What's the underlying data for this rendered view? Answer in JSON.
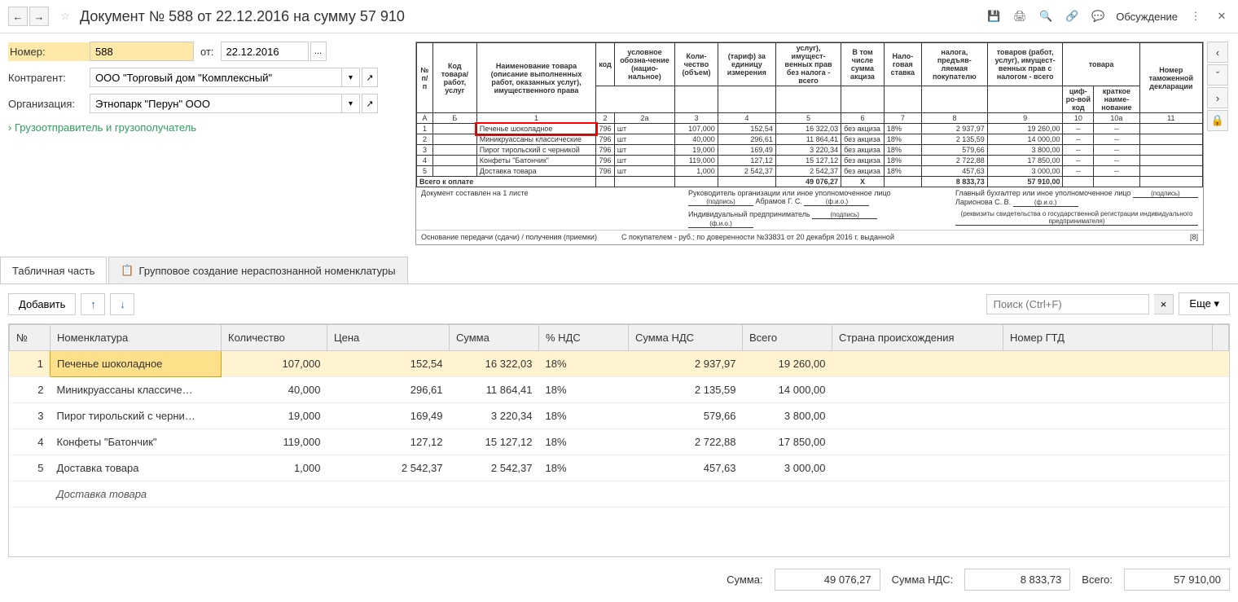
{
  "header": {
    "title": "Документ № 588 от 22.12.2016 на сумму 57 910",
    "discuss": "Обсуждение"
  },
  "form": {
    "number_label": "Номер:",
    "number": "588",
    "date_label": "от:",
    "date": "22.12.2016",
    "counterparty_label": "Контрагент:",
    "counterparty": "ООО \"Торговый дом \"Комплексный\"",
    "org_label": "Организация:",
    "org": "Этнопарк \"Перун\" ООО",
    "link": "Грузоотправитель и грузополучатель"
  },
  "preview": {
    "headers": {
      "n": "№ п/п",
      "code": "Код товара/ работ, услуг",
      "name": "Наименование товара (описание выполненных работ, оказанных услуг), имущественного права",
      "unit_code": "код",
      "unit_name": "условное обозна-чение (нацио-нальное)",
      "qty": "Коли-чество (объем)",
      "price": "(тариф) за единицу измерения",
      "cost_novat": "услуг), имущест-венных прав без налога - всего",
      "excise": "В том числе сумма акциза",
      "vat_rate": "Нало-говая ставка",
      "vat_sum": "налога, предъяв-ляемая покупателю",
      "total": "товаров (работ, услуг), имущест-венных прав с налогом - всего",
      "country_code": "циф-ро-вой код",
      "country_name": "краткое наиме-нование",
      "decl": "Номер таможенной декларации",
      "goods": "товара"
    },
    "colnums": {
      "a": "А",
      "b": "Б",
      "c1": "1",
      "c2": "2",
      "c2a": "2а",
      "c3": "3",
      "c4": "4",
      "c5": "5",
      "c6": "6",
      "c7": "7",
      "c8": "8",
      "c9": "9",
      "c10": "10",
      "c10a": "10а",
      "c11": "11"
    },
    "rows": [
      {
        "n": "1",
        "name": "Печенье шоколадное",
        "code": "796",
        "unit": "шт",
        "qty": "107,000",
        "price": "152,54",
        "sum": "16 322,03",
        "exc": "без акциза",
        "rate": "18%",
        "vat": "2 937,97",
        "total": "19 260,00"
      },
      {
        "n": "2",
        "name": "Миникруассаны классические",
        "code": "796",
        "unit": "шт",
        "qty": "40,000",
        "price": "296,61",
        "sum": "11 864,41",
        "exc": "без акциза",
        "rate": "18%",
        "vat": "2 135,59",
        "total": "14 000,00"
      },
      {
        "n": "3",
        "name": "Пирог тирольский с черникой",
        "code": "796",
        "unit": "шт",
        "qty": "19,000",
        "price": "169,49",
        "sum": "3 220,34",
        "exc": "без акциза",
        "rate": "18%",
        "vat": "579,66",
        "total": "3 800,00"
      },
      {
        "n": "4",
        "name": "Конфеты \"Батончик\"",
        "code": "796",
        "unit": "шт",
        "qty": "119,000",
        "price": "127,12",
        "sum": "15 127,12",
        "exc": "без акциза",
        "rate": "18%",
        "vat": "2 722,88",
        "total": "17 850,00"
      },
      {
        "n": "5",
        "name": "Доставка товара",
        "code": "796",
        "unit": "шт",
        "qty": "1,000",
        "price": "2 542,37",
        "sum": "2 542,37",
        "exc": "без акциза",
        "rate": "18%",
        "vat": "457,63",
        "total": "3 000,00"
      }
    ],
    "total_label": "Всего к оплате",
    "total_sum": "49 076,27",
    "total_x": "Х",
    "total_vat": "8 833,73",
    "total_all": "57 910,00",
    "doc_note": "Документ составлен на 1 листе",
    "mgr": "Руководитель организации или иное уполномоченное лицо",
    "mgr_name": "Абрамов Г. С.",
    "acc": "Главный бухгалтер или иное уполномоченное лицо",
    "acc_name": "Ларионова С. В.",
    "ip": "Индивидуальный предприниматель",
    "sub_podpis": "(подпись)",
    "sub_fio": "(ф.и.о.)",
    "rekv": "(реквизиты свидетельства о государственной регистрации индивидуального предпринимателя)",
    "basis": "Основание передачи (сдачи) / получения (приемки)",
    "basis_val": "С покупателем - руб.; по доверенности №33831 от 20 декабря 2016 г. выданной",
    "page": "[8]"
  },
  "tabs": {
    "t1": "Табличная часть",
    "t2": "Групповое создание нераспознанной номенклатуры"
  },
  "toolbar": {
    "add": "Добавить",
    "search_ph": "Поиск (Ctrl+F)",
    "more": "Еще"
  },
  "grid": {
    "cols": {
      "n": "№",
      "nom": "Номенклатура",
      "qty": "Количество",
      "price": "Цена",
      "sum": "Сумма",
      "vat_pct": "% НДС",
      "vat_sum": "Сумма НДС",
      "total": "Всего",
      "country": "Страна происхождения",
      "gtd": "Номер ГТД"
    },
    "rows": [
      {
        "n": "1",
        "nom": "Печенье шоколадное",
        "qty": "107,000",
        "price": "152,54",
        "sum": "16 322,03",
        "vat_pct": "18%",
        "vat_sum": "2 937,97",
        "total": "19 260,00"
      },
      {
        "n": "2",
        "nom": "Миникруассаны классиче…",
        "qty": "40,000",
        "price": "296,61",
        "sum": "11 864,41",
        "vat_pct": "18%",
        "vat_sum": "2 135,59",
        "total": "14 000,00"
      },
      {
        "n": "3",
        "nom": "Пирог тирольский с черни…",
        "qty": "19,000",
        "price": "169,49",
        "sum": "3 220,34",
        "vat_pct": "18%",
        "vat_sum": "579,66",
        "total": "3 800,00"
      },
      {
        "n": "4",
        "nom": "Конфеты \"Батончик\"",
        "qty": "119,000",
        "price": "127,12",
        "sum": "15 127,12",
        "vat_pct": "18%",
        "vat_sum": "2 722,88",
        "total": "17 850,00"
      },
      {
        "n": "5",
        "nom": "Доставка товара",
        "qty": "1,000",
        "price": "2 542,37",
        "sum": "2 542,37",
        "vat_pct": "18%",
        "vat_sum": "457,63",
        "total": "3 000,00"
      }
    ],
    "extra": "Доставка товара"
  },
  "footer": {
    "sum_l": "Сумма:",
    "sum": "49 076,27",
    "vat_l": "Сумма НДС:",
    "vat": "8 833,73",
    "total_l": "Всего:",
    "total": "57 910,00"
  }
}
